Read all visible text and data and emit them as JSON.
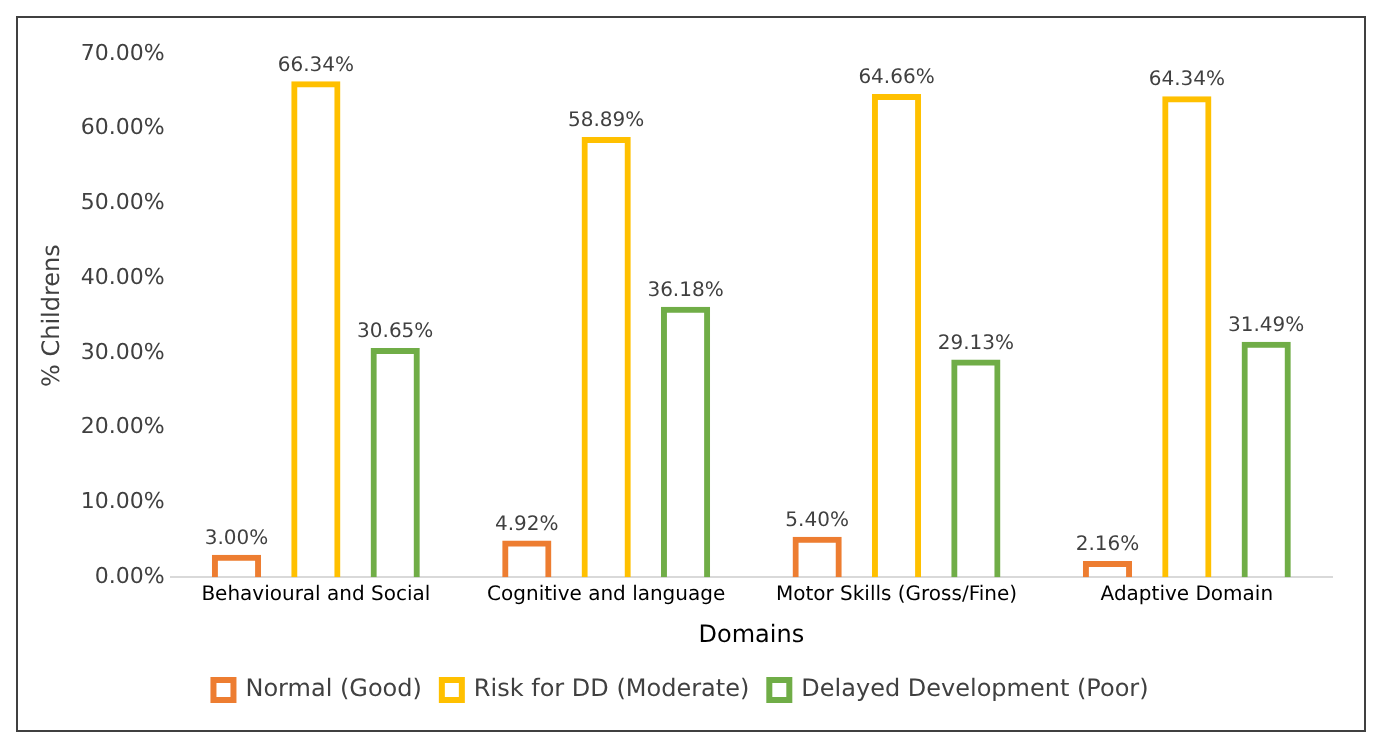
{
  "chart_data": {
    "type": "bar",
    "xlabel": "Domains",
    "ylabel": "% Childrens",
    "categories": [
      "Behavioural and Social",
      "Cognitive and language",
      "Motor Skills (Gross/Fine)",
      "Adaptive Domain"
    ],
    "series": [
      {
        "name": "Normal (Good)",
        "color": "#ed7d31",
        "values": [
          3.0,
          4.92,
          5.4,
          2.16
        ],
        "value_labels": [
          "3.00%",
          "4.92%",
          "5.40%",
          "2.16%"
        ]
      },
      {
        "name": "Risk for DD (Moderate)",
        "color": "#ffc000",
        "values": [
          66.34,
          58.89,
          64.66,
          64.34
        ],
        "value_labels": [
          "66.34%",
          "58.89%",
          "64.66%",
          "64.34%"
        ]
      },
      {
        "name": "Delayed Development (Poor)",
        "color": "#70ad47",
        "values": [
          30.65,
          36.18,
          29.13,
          31.49
        ],
        "value_labels": [
          "30.65%",
          "36.18%",
          "29.13%",
          "31.49%"
        ]
      }
    ],
    "ylim": [
      0,
      70
    ],
    "yticks": [
      {
        "value": 0,
        "label": "0.00%"
      },
      {
        "value": 10,
        "label": "10.00%"
      },
      {
        "value": 20,
        "label": "20.00%"
      },
      {
        "value": 30,
        "label": "30.00%"
      },
      {
        "value": 40,
        "label": "40.00%"
      },
      {
        "value": 50,
        "label": "50.00%"
      },
      {
        "value": 60,
        "label": "60.00%"
      },
      {
        "value": 70,
        "label": "70.00%"
      }
    ],
    "grid": false,
    "legend": "bottom"
  }
}
